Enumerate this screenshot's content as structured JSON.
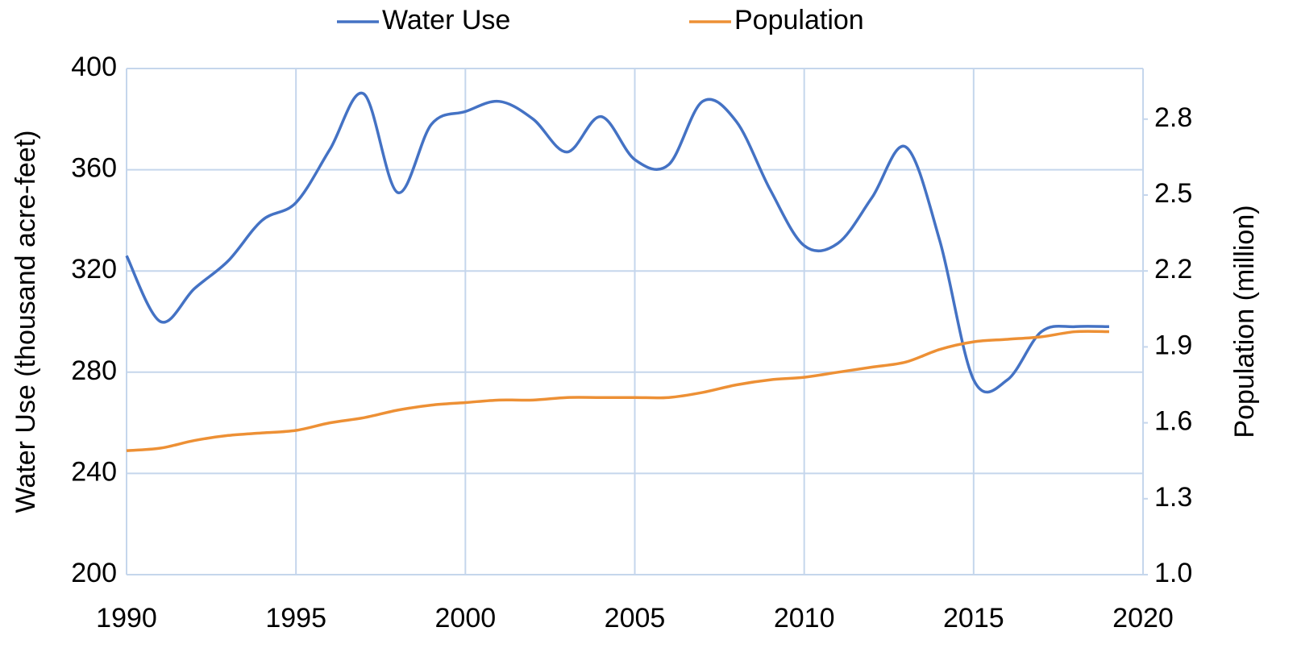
{
  "chart_data": {
    "type": "line",
    "x": [
      1990,
      1991,
      1992,
      1993,
      1994,
      1995,
      1996,
      1997,
      1998,
      1999,
      2000,
      2001,
      2002,
      2003,
      2004,
      2005,
      2006,
      2007,
      2008,
      2009,
      2010,
      2011,
      2012,
      2013,
      2014,
      2015,
      2016,
      2017,
      2018,
      2019
    ],
    "series": [
      {
        "name": "Water Use",
        "color": "#4472c4",
        "axis": "y",
        "values": [
          326,
          300,
          313,
          324,
          340,
          347,
          368,
          390,
          351,
          378,
          383,
          387,
          380,
          367,
          381,
          364,
          362,
          387,
          379,
          352,
          330,
          331,
          349,
          369,
          332,
          277,
          277,
          296,
          298,
          298
        ]
      },
      {
        "name": "Population",
        "color": "#ed9035",
        "axis": "y2",
        "values": [
          1.49,
          1.5,
          1.53,
          1.55,
          1.56,
          1.57,
          1.6,
          1.62,
          1.65,
          1.67,
          1.68,
          1.69,
          1.69,
          1.7,
          1.7,
          1.7,
          1.7,
          1.72,
          1.75,
          1.77,
          1.78,
          1.8,
          1.82,
          1.84,
          1.89,
          1.92,
          1.93,
          1.94,
          1.96,
          1.96
        ]
      }
    ],
    "ylabel": "Water Use (thousand acre-feet)",
    "y2label": "Population (million)",
    "xlim": [
      1990,
      2020
    ],
    "xticks": [
      1990,
      1995,
      2000,
      2005,
      2010,
      2015,
      2020
    ],
    "ylim": [
      200,
      400
    ],
    "yticks": [
      200,
      240,
      280,
      320,
      360,
      400
    ],
    "y2lim": [
      1.0,
      3.0
    ],
    "y2ticks": [
      {
        "value": 1,
        "label": "1.0"
      },
      1.3,
      1.6,
      1.9,
      2.2,
      2.5,
      2.8
    ],
    "grid": true,
    "legend": "top"
  }
}
